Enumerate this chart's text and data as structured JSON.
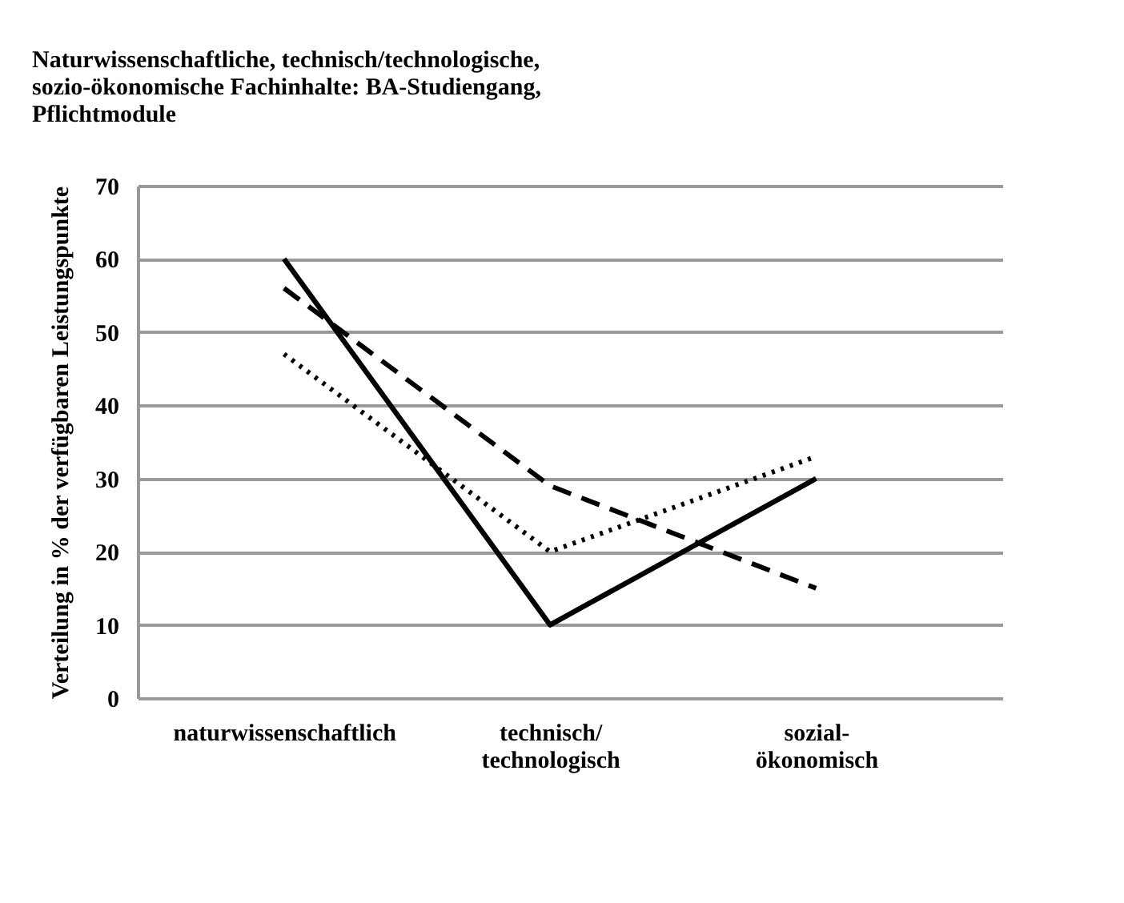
{
  "chart_data": {
    "type": "line",
    "title": [
      "Naturwissenschaftliche, technisch/technologische,",
      "sozio-ökonomische Fachinhalte: BA-Studiengang,",
      " Pflichtmodule"
    ],
    "ylabel": "Verteilung in % der verfügbaren Leistungspunkte",
    "categories": [
      "naturwissenschaftlich",
      "technisch/\ntechnologisch",
      "sozial-\nökonomisch"
    ],
    "series": [
      {
        "color": "#000000",
        "line_style": "solid",
        "values": [
          60,
          10,
          30
        ]
      },
      {
        "color": "#000000",
        "line_style": "dashed",
        "values": [
          56,
          29,
          15
        ]
      },
      {
        "color": "#000000",
        "line_style": "dotted",
        "values": [
          47,
          20,
          33
        ]
      }
    ],
    "ylim": [
      0,
      70
    ],
    "yticks": [
      0,
      10,
      20,
      30,
      40,
      50,
      60,
      70
    ],
    "grid": "y",
    "marker": "none"
  }
}
